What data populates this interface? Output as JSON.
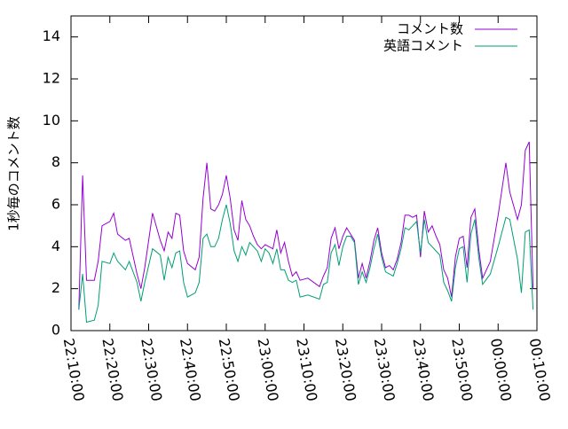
{
  "chart_data": {
    "type": "line",
    "ylabel": "1秒毎のコメント数",
    "x": [
      "22:12:00",
      "22:13:00",
      "22:14:00",
      "22:16:00",
      "22:17:00",
      "22:18:00",
      "22:20:00",
      "22:21:00",
      "22:22:00",
      "22:24:00",
      "22:25:00",
      "22:27:00",
      "22:28:00",
      "22:29:00",
      "22:31:00",
      "22:33:00",
      "22:34:00",
      "22:35:00",
      "22:36:00",
      "22:37:00",
      "22:38:00",
      "22:39:00",
      "22:40:00",
      "22:42:00",
      "22:43:00",
      "22:44:00",
      "22:45:00",
      "22:46:00",
      "22:47:00",
      "22:48:00",
      "22:49:00",
      "22:50:00",
      "22:51:00",
      "22:52:00",
      "22:53:00",
      "22:54:00",
      "22:55:00",
      "22:56:00",
      "22:57:00",
      "22:58:00",
      "22:59:00",
      "23:00:00",
      "23:01:00",
      "23:02:00",
      "23:03:00",
      "23:04:00",
      "23:05:00",
      "23:06:00",
      "23:07:00",
      "23:08:00",
      "23:09:00",
      "23:11:00",
      "23:14:00",
      "23:15:00",
      "23:16:00",
      "23:17:00",
      "23:18:00",
      "23:19:00",
      "23:20:00",
      "23:21:00",
      "23:22:00",
      "23:23:00",
      "23:24:00",
      "23:25:00",
      "23:26:00",
      "23:27:00",
      "23:28:00",
      "23:29:00",
      "23:30:00",
      "23:31:00",
      "23:32:00",
      "23:33:00",
      "23:34:00",
      "23:35:00",
      "23:36:00",
      "23:37:00",
      "23:38:00",
      "23:39:00",
      "23:40:00",
      "23:41:00",
      "23:42:00",
      "23:43:00",
      "23:44:00",
      "23:45:00",
      "23:46:00",
      "23:47:00",
      "23:48:00",
      "23:49:00",
      "23:50:00",
      "23:51:00",
      "23:52:00",
      "23:53:00",
      "23:54:00",
      "23:55:00",
      "23:56:00",
      "23:58:00",
      "00:00:00",
      "00:02:00",
      "00:03:00",
      "00:05:00",
      "00:06:00",
      "00:07:00",
      "00:08:00",
      "00:09:00"
    ],
    "series": [
      {
        "name": "コメント数",
        "color": "#9400d3",
        "values": [
          1.0,
          7.4,
          2.4,
          2.4,
          3.3,
          5.0,
          5.2,
          5.6,
          4.6,
          4.3,
          4.4,
          2.7,
          2.0,
          3.0,
          5.6,
          4.3,
          3.8,
          4.7,
          4.4,
          5.6,
          5.5,
          3.8,
          3.2,
          2.9,
          3.5,
          6.3,
          8.0,
          5.8,
          5.7,
          6.0,
          6.5,
          7.4,
          6.3,
          4.8,
          4.3,
          6.2,
          5.3,
          5.0,
          4.5,
          4.1,
          3.9,
          4.1,
          4.0,
          3.9,
          4.8,
          3.7,
          4.2,
          3.3,
          2.6,
          2.8,
          2.4,
          2.5,
          2.1,
          2.6,
          3.0,
          4.4,
          4.9,
          3.9,
          4.5,
          4.9,
          4.6,
          4.3,
          2.5,
          3.2,
          2.5,
          3.3,
          4.3,
          4.9,
          3.7,
          3.0,
          3.1,
          2.9,
          3.4,
          4.2,
          5.5,
          5.5,
          5.4,
          5.5,
          3.5,
          5.7,
          4.7,
          5.0,
          4.5,
          4.1,
          2.9,
          2.5,
          1.6,
          3.5,
          4.4,
          4.5,
          3.0,
          5.4,
          5.8,
          3.9,
          2.5,
          3.3,
          5.5,
          8.0,
          6.6,
          5.3,
          6.0,
          8.6,
          9.0,
          2.0
        ]
      },
      {
        "name": "英語コメント",
        "color": "#009e73",
        "values": [
          1.0,
          2.7,
          0.4,
          0.5,
          1.2,
          3.3,
          3.2,
          3.7,
          3.3,
          2.9,
          3.3,
          2.3,
          1.4,
          2.3,
          3.9,
          3.6,
          2.4,
          3.5,
          3.0,
          3.7,
          3.8,
          2.3,
          1.6,
          1.8,
          2.3,
          4.4,
          4.6,
          4.0,
          4.0,
          4.4,
          5.3,
          6.0,
          5.1,
          3.8,
          3.3,
          4.0,
          3.6,
          4.2,
          4.0,
          3.8,
          3.3,
          3.9,
          3.7,
          3.2,
          3.9,
          2.9,
          2.9,
          2.4,
          2.3,
          2.4,
          1.6,
          1.7,
          1.5,
          2.2,
          2.3,
          3.7,
          4.1,
          3.1,
          4.0,
          4.5,
          4.5,
          4.2,
          2.2,
          2.8,
          2.3,
          3.0,
          3.9,
          4.6,
          3.5,
          2.8,
          2.7,
          2.6,
          3.2,
          3.9,
          4.9,
          4.8,
          5.0,
          5.2,
          3.7,
          5.3,
          4.2,
          4.0,
          3.8,
          3.6,
          2.3,
          1.9,
          1.4,
          3.0,
          3.9,
          4.0,
          2.3,
          4.6,
          5.3,
          3.5,
          2.2,
          2.7,
          4.0,
          5.4,
          5.3,
          3.4,
          1.8,
          4.7,
          4.8,
          1.0
        ]
      }
    ],
    "xlim": [
      "22:10:00",
      "00:10:00"
    ],
    "xticks": [
      "22:10:00",
      "22:20:00",
      "22:30:00",
      "22:40:00",
      "22:50:00",
      "23:00:00",
      "23:10:00",
      "23:20:00",
      "23:30:00",
      "23:40:00",
      "23:50:00",
      "00:00:00",
      "00:10:00"
    ],
    "ylim": [
      0,
      15
    ],
    "yticks": [
      0,
      2,
      4,
      6,
      8,
      10,
      12,
      14
    ],
    "legend": "top-right"
  }
}
